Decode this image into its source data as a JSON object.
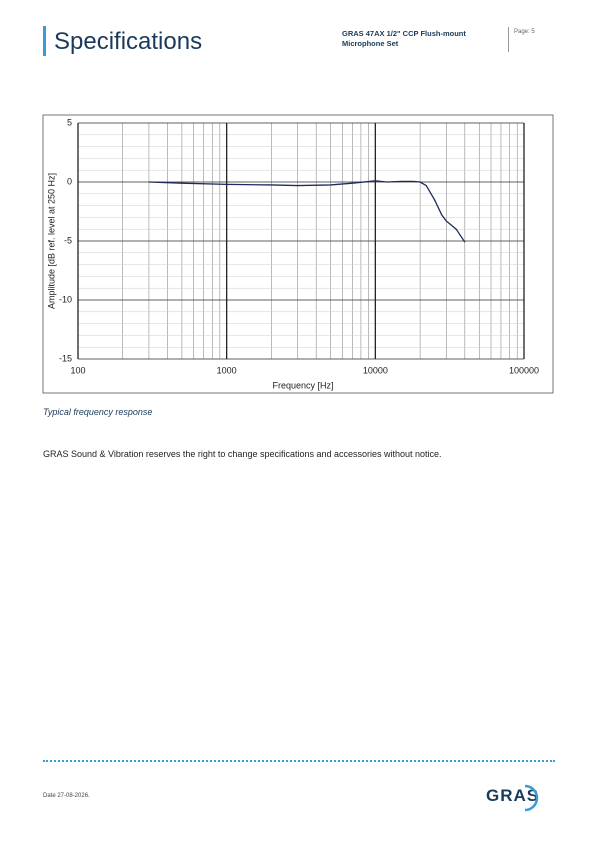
{
  "header": {
    "title": "Specifications",
    "product": "GRAS 47AX 1/2\" CCP Flush-mount Microphone Set",
    "page": "Page: 5"
  },
  "chart_data": {
    "type": "line",
    "xlabel": "Frequency [Hz]",
    "ylabel": "Amplitude [dB ref. level at 250 Hz]",
    "x": [
      300,
      500,
      1000,
      2000,
      3000,
      5000,
      7000,
      10000,
      12000,
      15000,
      18000,
      20000,
      22000,
      25000,
      28000,
      30000,
      35000,
      40000
    ],
    "values": [
      0,
      -0.1,
      -0.2,
      -0.25,
      -0.3,
      -0.25,
      -0.1,
      0.1,
      0,
      0.05,
      0.05,
      0,
      -0.3,
      -1.5,
      -2.8,
      -3.3,
      -4,
      -5.1
    ],
    "color": "#1f2a5c",
    "xscale": "log",
    "xlim": [
      100,
      100000
    ],
    "xticks": [
      100,
      1000,
      10000,
      100000
    ],
    "ylim": [
      -15,
      5
    ],
    "yticks": [
      -15,
      -10,
      -5,
      0,
      5
    ],
    "grid": true,
    "minor_grid": true
  },
  "caption": "Typical frequency response",
  "notice": "GRAS Sound & Vibration reserves the right to change specifications and accessories without notice.",
  "footer": {
    "date": "Date 27-08-2026.",
    "logo": "GRAS"
  }
}
